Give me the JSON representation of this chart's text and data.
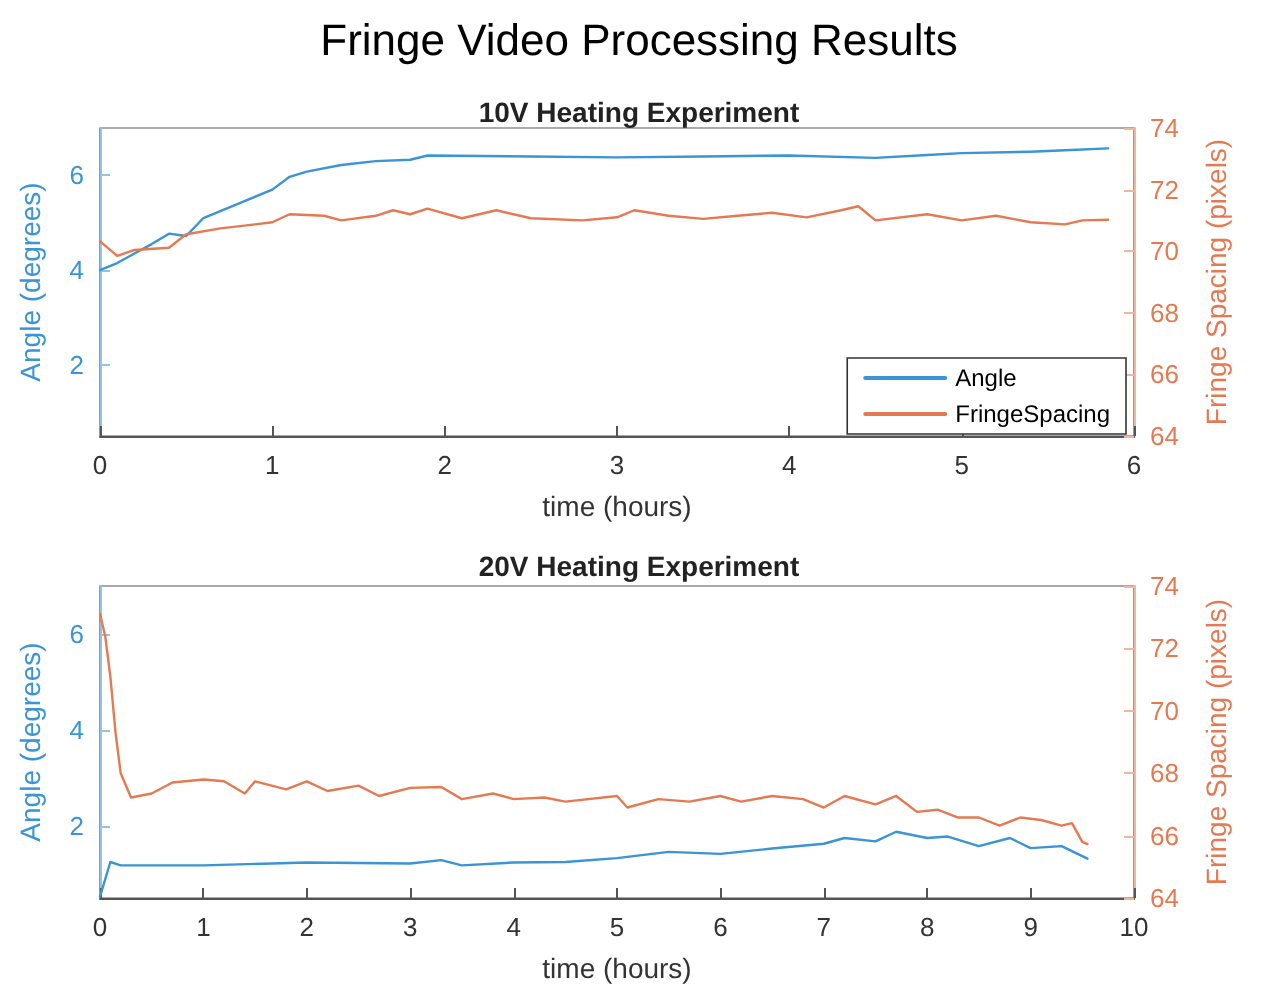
{
  "chart_data": [
    {
      "type": "line",
      "title": "Fringe Video Processing Results",
      "subtitle": "10V Heating Experiment",
      "xlabel": "time (hours)",
      "ylabel": "Angle (degrees)",
      "y2label": "Fringe Spacing (pixels)",
      "xlim": [
        0,
        6
      ],
      "xticks": [
        0,
        1,
        2,
        3,
        4,
        5,
        6
      ],
      "ylim": [
        0.5,
        7
      ],
      "yticks": [
        2,
        4,
        6
      ],
      "y2lim": [
        64,
        74
      ],
      "y2ticks": [
        64,
        66,
        68,
        70,
        72,
        74
      ],
      "grid": false,
      "legend": "bottom right",
      "line_style": "solid",
      "series": [
        {
          "name": "Angle",
          "color": "#3a94d6",
          "x": [
            0,
            0.1,
            0.2,
            0.3,
            0.4,
            0.5,
            0.6,
            0.8,
            1.0,
            1.1,
            1.2,
            1.4,
            1.6,
            1.8,
            1.9,
            2.5,
            3.0,
            3.5,
            4.0,
            4.5,
            4.8,
            5.0,
            5.4,
            5.6,
            5.85
          ],
          "values": [
            4.0,
            4.15,
            4.35,
            4.55,
            4.77,
            4.72,
            5.1,
            5.4,
            5.7,
            5.97,
            6.08,
            6.22,
            6.3,
            6.33,
            6.42,
            6.4,
            6.38,
            6.4,
            6.42,
            6.37,
            6.43,
            6.47,
            6.5,
            6.53,
            6.57
          ]
        },
        {
          "name": "FringeSpacing",
          "color": "#e57a52",
          "axis": "y2",
          "x": [
            0,
            0.1,
            0.2,
            0.4,
            0.5,
            0.7,
            0.9,
            1.0,
            1.1,
            1.3,
            1.4,
            1.6,
            1.7,
            1.8,
            1.9,
            2.1,
            2.3,
            2.5,
            2.8,
            3.0,
            3.1,
            3.3,
            3.5,
            3.7,
            3.9,
            4.1,
            4.3,
            4.4,
            4.5,
            4.8,
            5.0,
            5.2,
            5.4,
            5.6,
            5.7,
            5.85
          ],
          "values": [
            70.32,
            69.85,
            70.04,
            70.11,
            70.55,
            70.74,
            70.87,
            70.94,
            71.2,
            71.15,
            71.0,
            71.15,
            71.33,
            71.2,
            71.38,
            71.07,
            71.33,
            71.07,
            71.0,
            71.1,
            71.33,
            71.15,
            71.05,
            71.15,
            71.25,
            71.1,
            71.33,
            71.46,
            71.0,
            71.2,
            71.0,
            71.15,
            70.94,
            70.87,
            71.0,
            71.02
          ]
        }
      ]
    },
    {
      "type": "line",
      "title": "20V Heating Experiment",
      "xlabel": "time (hours)",
      "ylabel": "Angle (degrees)",
      "y2label": "Fringe Spacing (pixels)",
      "xlim": [
        0,
        10
      ],
      "xticks": [
        0,
        1,
        2,
        3,
        4,
        5,
        6,
        7,
        8,
        9,
        10
      ],
      "ylim": [
        0.5,
        7
      ],
      "yticks": [
        2,
        4,
        6
      ],
      "y2lim": [
        64,
        74
      ],
      "y2ticks": [
        64,
        66,
        68,
        70,
        72,
        74
      ],
      "grid": false,
      "legend": false,
      "line_style": "solid",
      "series": [
        {
          "color": "#3a94d6",
          "x": [
            0,
            0.1,
            0.2,
            1,
            2,
            3,
            3.3,
            3.5,
            4,
            4.5,
            5,
            5.5,
            6,
            6.5,
            7,
            7.2,
            7.5,
            7.7,
            8,
            8.2,
            8.5,
            8.8,
            9,
            9.3,
            9.55
          ],
          "values": [
            0.53,
            1.25,
            1.18,
            1.18,
            1.24,
            1.22,
            1.29,
            1.18,
            1.24,
            1.25,
            1.33,
            1.46,
            1.42,
            1.53,
            1.63,
            1.75,
            1.68,
            1.88,
            1.75,
            1.78,
            1.58,
            1.75,
            1.54,
            1.58,
            1.32
          ]
        },
        {
          "color": "#e57a52",
          "axis": "y2",
          "x": [
            0,
            0.05,
            0.1,
            0.15,
            0.2,
            0.3,
            0.5,
            0.7,
            1.0,
            1.2,
            1.4,
            1.5,
            1.8,
            2.0,
            2.2,
            2.5,
            2.7,
            3.0,
            3.3,
            3.5,
            3.8,
            4.0,
            4.3,
            4.5,
            5.0,
            5.1,
            5.4,
            5.7,
            6.0,
            6.2,
            6.5,
            6.8,
            7.0,
            7.2,
            7.5,
            7.7,
            7.9,
            8.1,
            8.3,
            8.5,
            8.7,
            8.9,
            9.1,
            9.3,
            9.4,
            9.5,
            9.55
          ],
          "values": [
            73.1,
            72.4,
            71.1,
            69.3,
            68.0,
            67.22,
            67.35,
            67.7,
            67.8,
            67.74,
            67.35,
            67.74,
            67.48,
            67.74,
            67.43,
            67.6,
            67.27,
            67.53,
            67.56,
            67.17,
            67.35,
            67.17,
            67.22,
            67.09,
            67.27,
            66.9,
            67.17,
            67.09,
            67.27,
            67.09,
            67.27,
            67.17,
            66.9,
            67.27,
            67.0,
            67.27,
            66.76,
            66.83,
            66.58,
            66.58,
            66.32,
            66.58,
            66.5,
            66.32,
            66.4,
            65.8,
            65.73
          ]
        }
      ]
    }
  ]
}
